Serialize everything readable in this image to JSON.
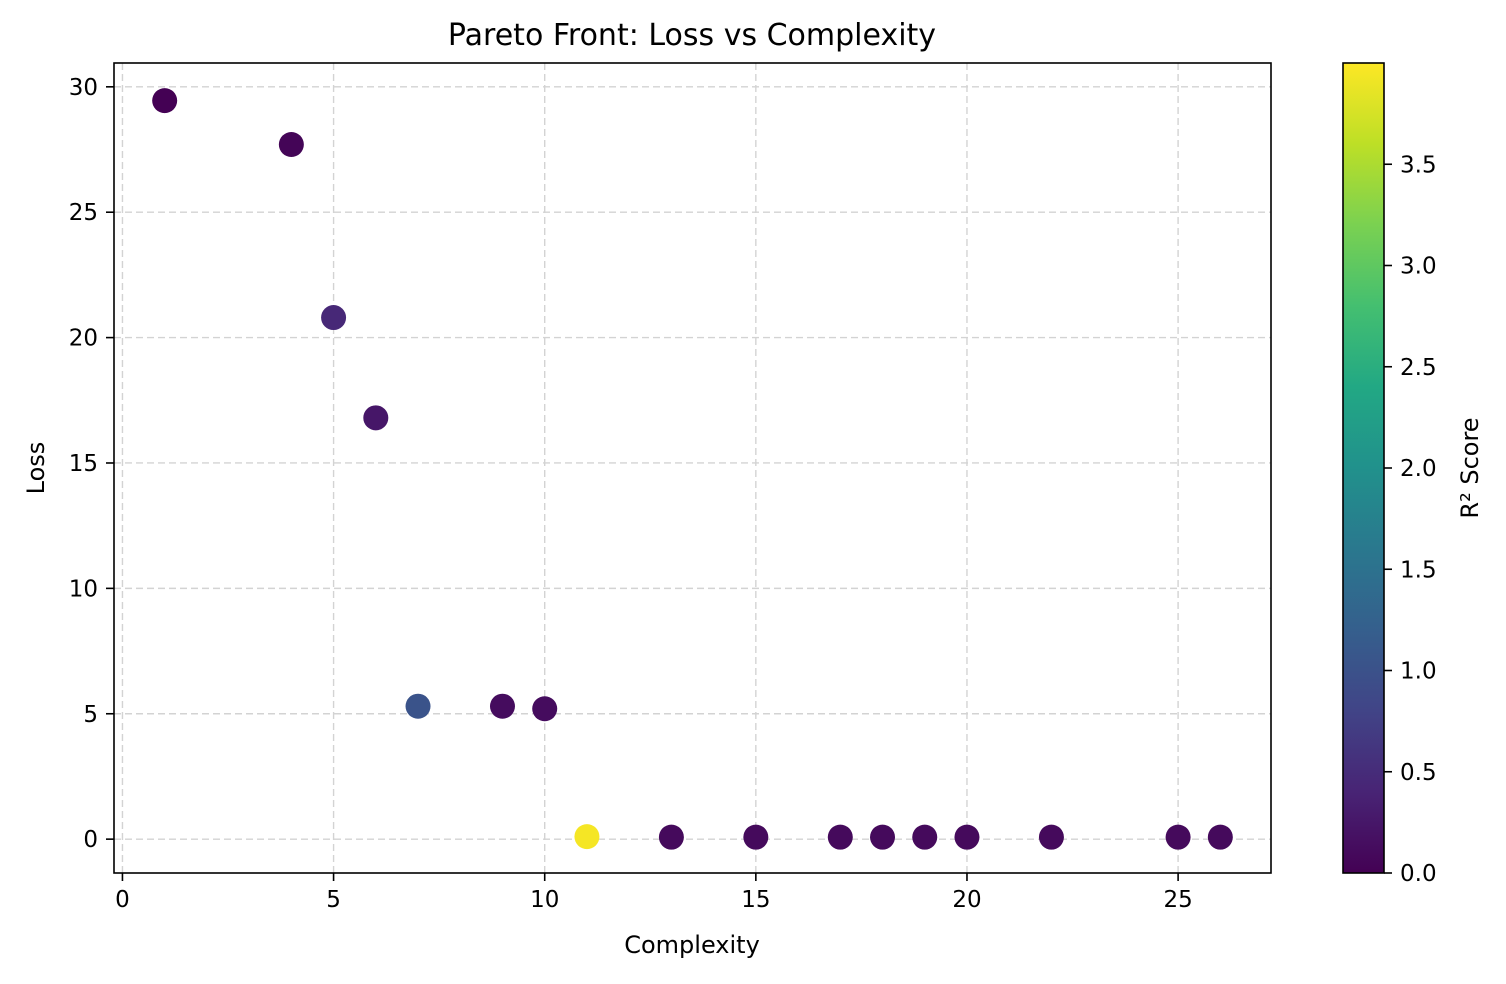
{
  "chart_data": {
    "type": "scatter",
    "title": "Pareto Front: Loss vs Complexity",
    "xlabel": "Complexity",
    "ylabel": "Loss",
    "xlim": [
      -0.2,
      27.2
    ],
    "ylim": [
      -1.35,
      30.95
    ],
    "xticks": [
      0,
      5,
      10,
      15,
      20,
      25
    ],
    "yticks": [
      0,
      5,
      10,
      15,
      20,
      25,
      30
    ],
    "grid": true,
    "points": [
      {
        "x": 1,
        "y": 29.45,
        "r2": 0.0
      },
      {
        "x": 4,
        "y": 27.7,
        "r2": 0.04
      },
      {
        "x": 5,
        "y": 20.8,
        "r2": 0.45
      },
      {
        "x": 6,
        "y": 16.8,
        "r2": 0.24
      },
      {
        "x": 7,
        "y": 5.3,
        "r2": 1.02
      },
      {
        "x": 9,
        "y": 5.3,
        "r2": 0.12
      },
      {
        "x": 10,
        "y": 5.2,
        "r2": 0.12
      },
      {
        "x": 11,
        "y": 0.1,
        "r2": 3.95
      },
      {
        "x": 13,
        "y": 0.08,
        "r2": 0.1
      },
      {
        "x": 15,
        "y": 0.08,
        "r2": 0.1
      },
      {
        "x": 17,
        "y": 0.08,
        "r2": 0.1
      },
      {
        "x": 18,
        "y": 0.08,
        "r2": 0.1
      },
      {
        "x": 19,
        "y": 0.08,
        "r2": 0.1
      },
      {
        "x": 20,
        "y": 0.08,
        "r2": 0.1
      },
      {
        "x": 22,
        "y": 0.08,
        "r2": 0.1
      },
      {
        "x": 25,
        "y": 0.08,
        "r2": 0.1
      },
      {
        "x": 26,
        "y": 0.08,
        "r2": 0.1
      }
    ],
    "colorbar": {
      "label": "R² Score",
      "colormap": "viridis",
      "range": [
        0,
        4.0
      ],
      "ticks": [
        0.0,
        0.5,
        1.0,
        1.5,
        2.0,
        2.5,
        3.0,
        3.5
      ],
      "tick_labels": [
        "0.0",
        "0.5",
        "1.0",
        "1.5",
        "2.0",
        "2.5",
        "3.0",
        "3.5"
      ]
    }
  }
}
